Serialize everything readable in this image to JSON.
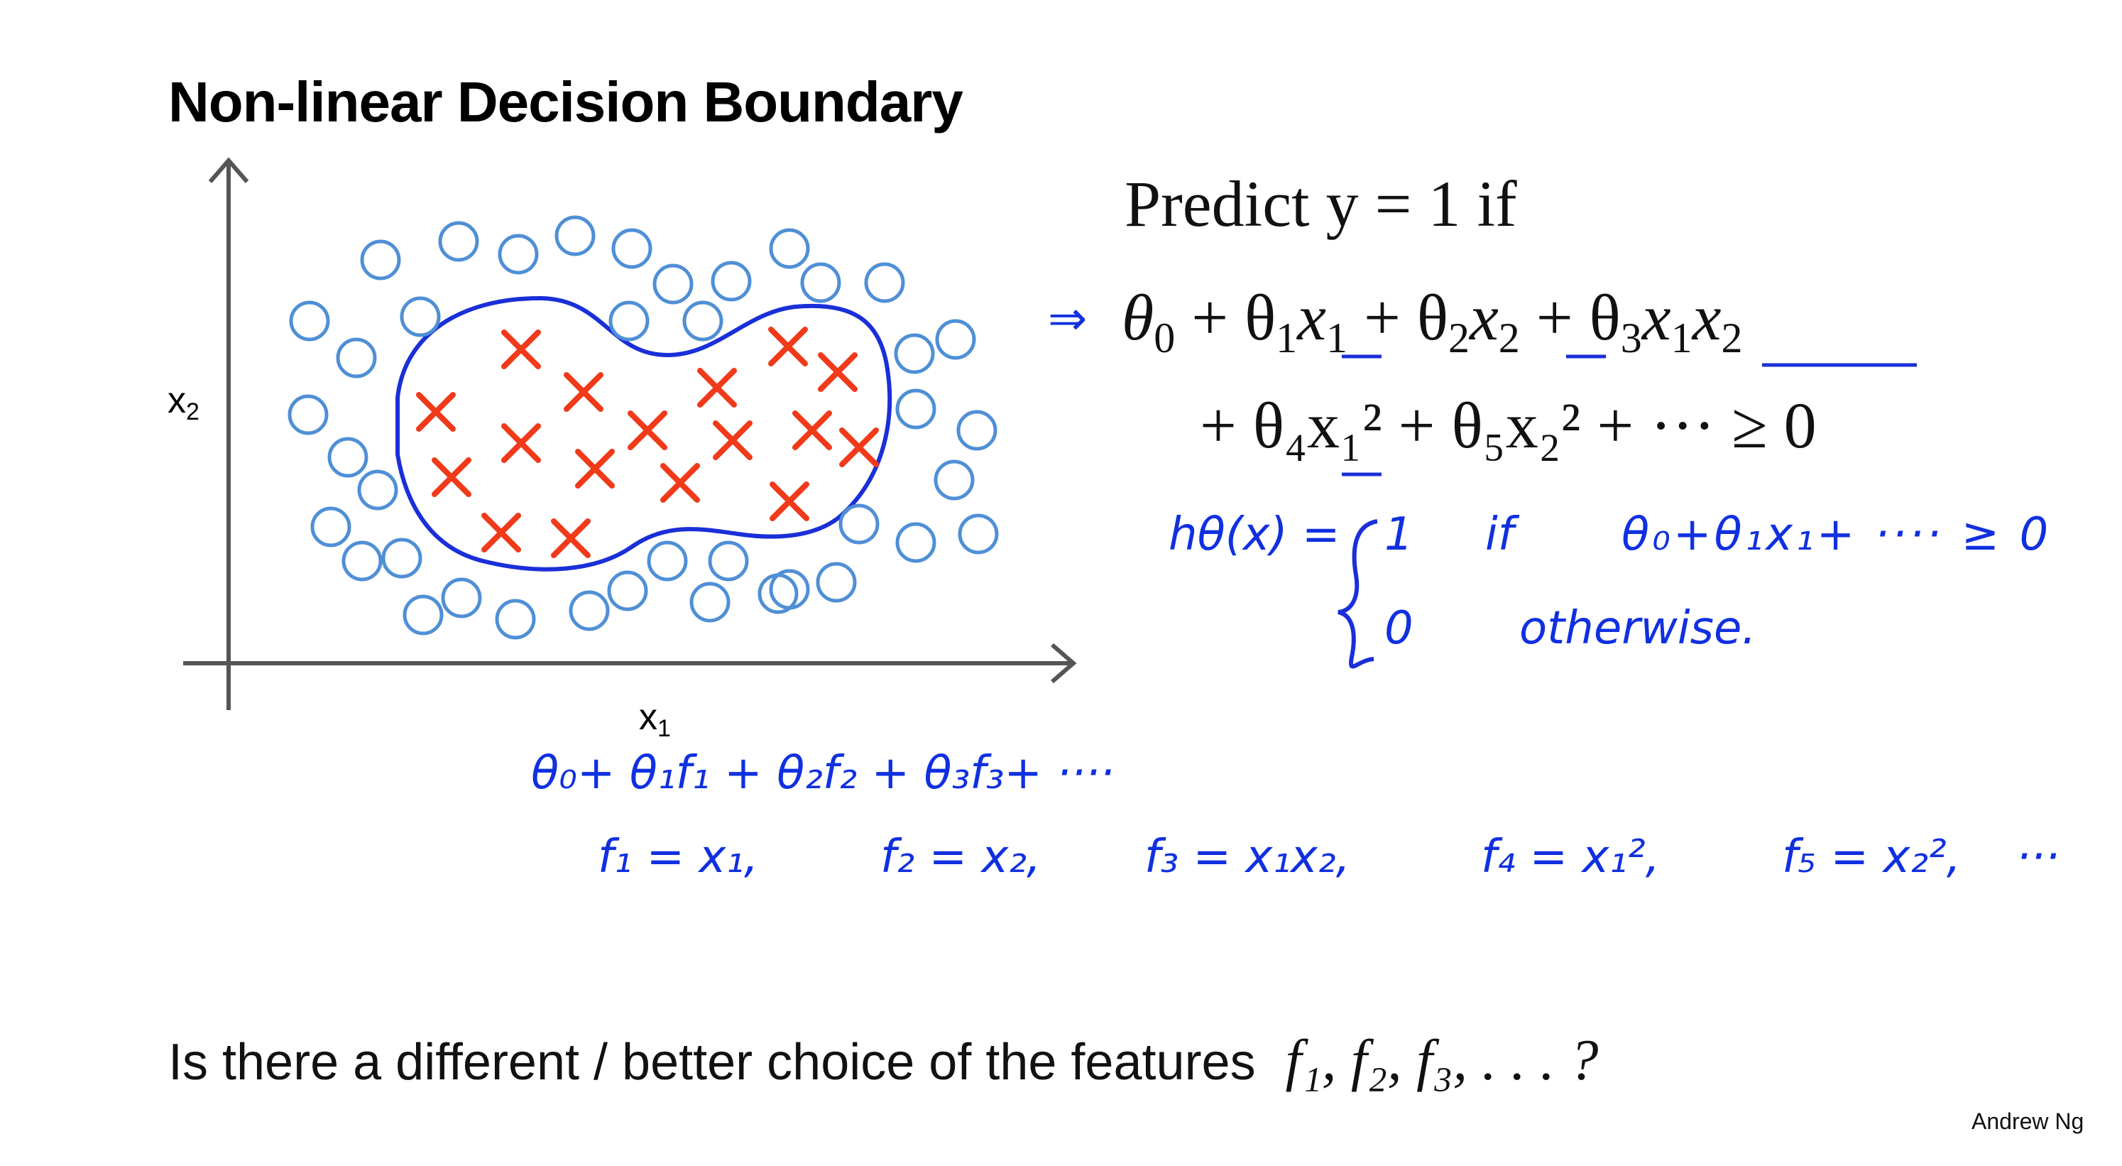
{
  "slide": {
    "title": "Non-linear Decision Boundary",
    "author": "Andrew Ng"
  },
  "plot": {
    "x_label": "x",
    "x_label_sub": "1",
    "y_label": "x",
    "y_label_sub": "2",
    "colors": {
      "negative": "#4f8fd6",
      "positive": "#f03a1a",
      "boundary": "#1a2fd8",
      "axes": "#555555"
    },
    "marker_names": {
      "negative": "circle",
      "positive": "cross"
    }
  },
  "predict": {
    "line1": "Predict y = 1 if",
    "arrow": "⇒",
    "line2_terms": [
      "θ",
      "0",
      " + θ",
      "1",
      "x",
      "1",
      " + θ",
      "2",
      "x",
      "2",
      " + θ",
      "3",
      "x",
      "1",
      "x",
      "2"
    ],
    "line3": "+ θ₄x₁² + θ₅x₂² + ··· ≥ 0"
  },
  "hypothesis": {
    "lhs": "hθ(x) =",
    "case1_value": "1",
    "case1_word": "if",
    "case1_condition": "θ₀+θ₁x₁+ ···· ≥ 0",
    "case2_value": "0",
    "case2_word": "otherwise."
  },
  "features": {
    "line1": "θ₀+ θ₁f₁ + θ₂f₂ + θ₃f₃+ ····",
    "line2_items": [
      "f₁ = x₁,",
      "f₂ = x₂,",
      "f₃ = x₁x₂,",
      "f₄ = x₁²,",
      "f₅ = x₂²,",
      "···"
    ]
  },
  "question": {
    "text": "Is there a different / better choice of the features",
    "math": "f₁, f₂, f₃, . . . ?"
  }
}
